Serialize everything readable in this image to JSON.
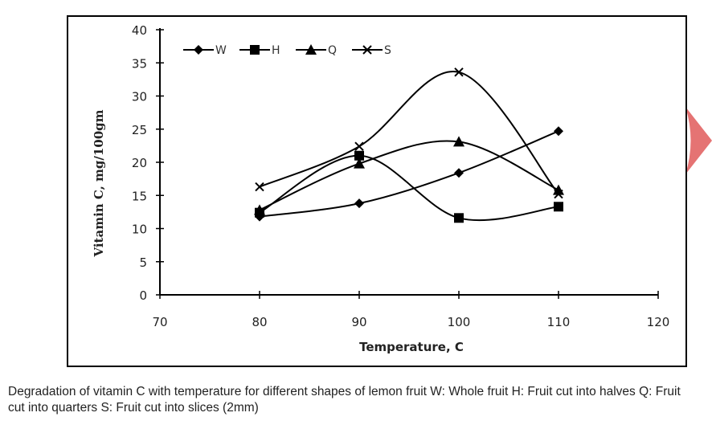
{
  "chart_data": {
    "type": "line",
    "xlabel": "Temperature, C",
    "ylabel": "Vitamin C, mg/100gm",
    "xlim": [
      70,
      120
    ],
    "ylim": [
      0,
      40
    ],
    "x_ticks": [
      "70",
      "80",
      "90",
      "100",
      "110",
      "120"
    ],
    "y_ticks": [
      "0",
      "5",
      "10",
      "15",
      "20",
      "25",
      "30",
      "35",
      "40"
    ],
    "x": [
      80,
      90,
      100,
      110
    ],
    "grid": false,
    "legend_position": "top-left",
    "series": [
      {
        "name": "W",
        "marker": "diamond",
        "values": [
          11.8,
          13.8,
          18.4,
          24.7
        ]
      },
      {
        "name": "H",
        "marker": "square",
        "values": [
          12.4,
          21.0,
          11.6,
          13.3
        ]
      },
      {
        "name": "Q",
        "marker": "triangle",
        "values": [
          12.8,
          19.8,
          23.1,
          15.8
        ]
      },
      {
        "name": "S",
        "marker": "x",
        "values": [
          16.3,
          22.4,
          33.6,
          15.2
        ]
      }
    ],
    "line_color": "#000000",
    "accent_shape_color": "#e57373"
  },
  "caption": "Degradation of vitamin C with temperature for different shapes of lemon fruit W: Whole fruit H: Fruit cut into halves Q: Fruit cut into quarters S: Fruit cut into slices (2mm)"
}
